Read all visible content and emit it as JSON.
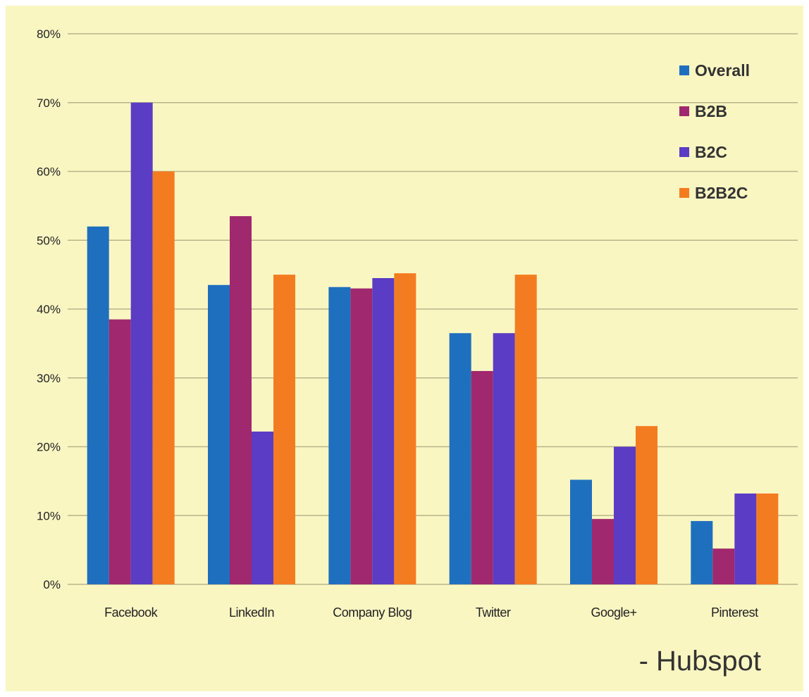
{
  "chart_data": {
    "type": "bar",
    "categories": [
      "Facebook",
      "LinkedIn",
      "Company Blog",
      "Twitter",
      "Google+",
      "Pinterest"
    ],
    "series": [
      {
        "name": "Overall",
        "color": "#1f6fbf",
        "values": [
          52,
          43.5,
          43.2,
          36.5,
          15.2,
          9.2
        ]
      },
      {
        "name": "B2B",
        "color": "#a0286e",
        "values": [
          38.5,
          53.5,
          43,
          31,
          9.5,
          5.2
        ]
      },
      {
        "name": "B2C",
        "color": "#5b3cc4",
        "values": [
          70,
          22.2,
          44.5,
          36.5,
          20,
          13.2
        ]
      },
      {
        "name": "B2B2C",
        "color": "#f47c20",
        "values": [
          60,
          45,
          45.2,
          45,
          23,
          13.2
        ]
      }
    ],
    "y_ticks": [
      "0%",
      "10%",
      "20%",
      "30%",
      "40%",
      "50%",
      "60%",
      "70%",
      "80%"
    ],
    "ylim": [
      0,
      80
    ],
    "grid": true,
    "legend_position": "top-right",
    "source": "- Hubspot",
    "background": "#faf6c2",
    "gridline_color": "#b9b48a"
  }
}
